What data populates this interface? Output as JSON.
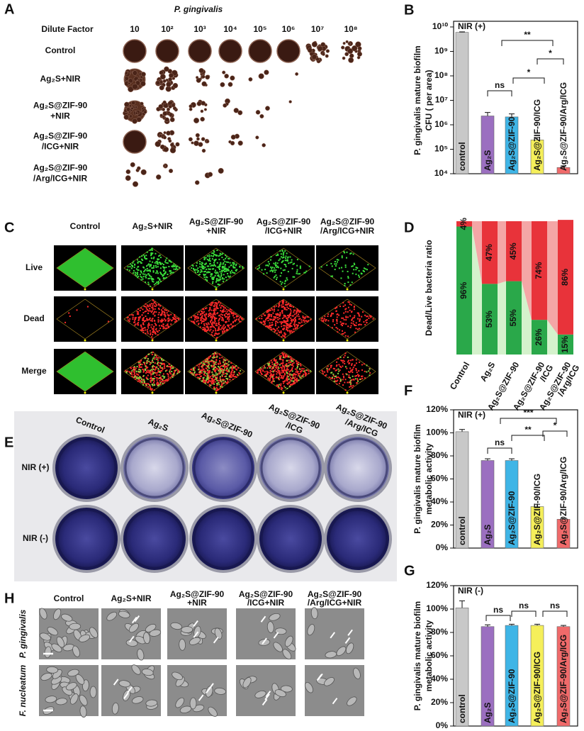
{
  "figure": {
    "panel_a": {
      "letter": "A",
      "title": "P. gingivalis",
      "dilute_label": "Dilute Factor",
      "dilutions": [
        "10",
        "10²",
        "10³",
        "10⁴",
        "10⁵",
        "10⁶",
        "10⁷",
        "10⁸"
      ],
      "rows": [
        [
          "Control"
        ],
        [
          "Ag₂S+NIR"
        ],
        [
          "Ag₂S@ZIF-90",
          "+NIR"
        ],
        [
          "Ag₂S@ZIF-90",
          "/ICG+NIR"
        ],
        [
          "Ag₂S@ZIF-90",
          "/Arg/ICG+NIR"
        ]
      ]
    },
    "panel_c": {
      "letter": "C",
      "columns": [
        [
          "Control"
        ],
        [
          "Ag₂S+NIR"
        ],
        [
          "Ag₂S@ZIF-90",
          "+NIR"
        ],
        [
          "Ag₂S@ZIF-90",
          "/ICG+NIR"
        ],
        [
          "Ag₂S@ZIF-90",
          "/Arg/ICG+NIR"
        ]
      ],
      "rows": [
        "Live",
        "Dead",
        "Merge"
      ]
    },
    "panel_e": {
      "letter": "E",
      "columns": [
        [
          "Control"
        ],
        [
          "Ag₂S"
        ],
        [
          "Ag₂S@ZIF-90"
        ],
        [
          "Ag₂S@ZIF-90",
          "/ICG"
        ],
        [
          "Ag₂S@ZIF-90",
          "/Arg/ICG"
        ]
      ],
      "rows": [
        "NIR (+)",
        "NIR (-)"
      ]
    },
    "panel_h": {
      "letter": "H",
      "columns": [
        [
          "Control"
        ],
        [
          "Ag₂S+NIR"
        ],
        [
          "Ag₂S@ZIF-90",
          "+NIR"
        ],
        [
          "Ag₂S@ZIF-90",
          "/ICG+NIR"
        ],
        [
          "Ag₂S@ZIF-90",
          "/Arg/ICG+NIR"
        ]
      ],
      "rows": [
        "P. gingivalis",
        "F. nucleatum"
      ]
    }
  },
  "chart_data": [
    {
      "type": "bar",
      "letter": "B",
      "annotation": "NIR (+)",
      "log_scale": true,
      "y_label": [
        "P. gingivalis mature biofilm",
        "CFU ( per area)"
      ],
      "categories": [
        "control",
        "Ag₂S",
        "Ag₂S@ZIF-90",
        "Ag₂S@ZIF-90/ICG",
        "Ag₂S@ZIF-90/Arg/ICG"
      ],
      "values": [
        6000000000,
        2300000,
        2100000,
        240000,
        18000
      ],
      "errors": [
        300000000,
        900000,
        700000,
        60000,
        3000
      ],
      "colors": [
        "#c8c8c8",
        "#9b6fc0",
        "#3fb5e6",
        "#f5ef5a",
        "#f06a6a"
      ],
      "significance": [
        "ns",
        "*",
        "*",
        "**"
      ],
      "ylim": [
        10000,
        10000000000
      ],
      "yticks": [
        {
          "value": 10000,
          "label": "10⁴"
        },
        {
          "value": 100000,
          "label": "10⁵"
        },
        {
          "value": 1000000,
          "label": "10⁶"
        },
        {
          "value": 10000000,
          "label": "10⁷"
        },
        {
          "value": 100000000,
          "label": "10⁸"
        },
        {
          "value": 1000000000,
          "label": "10⁹"
        },
        {
          "value": 10000000000,
          "label": "10¹⁰"
        }
      ]
    },
    {
      "type": "stacked_bar",
      "letter": "D",
      "y_label": [
        "Dead/Live bacteria ratio"
      ],
      "categories": [
        [
          "Control"
        ],
        [
          "Ag₂S"
        ],
        [
          "Ag₂S@ZIF-90"
        ],
        [
          "Ag₂S@ZIF-90",
          "/ICG"
        ],
        [
          "Ag₂S@ZIF-90",
          "/Arg/ICG"
        ]
      ],
      "series": [
        {
          "color": "#2aa84a",
          "values": [
            96,
            53,
            55,
            26,
            15
          ],
          "value_labels": [
            "96%",
            "53%",
            "55%",
            "26%",
            "15%"
          ]
        },
        {
          "color": "#e8333a",
          "values": [
            4,
            47,
            45,
            74,
            86
          ],
          "value_labels": [
            "4%",
            "47%",
            "45%",
            "74%",
            "86%"
          ]
        }
      ],
      "ylim": [
        0,
        100
      ]
    },
    {
      "type": "bar",
      "letter": "F",
      "annotation": "NIR (+)",
      "y_label": [
        "P. gingivalis mature biofilm",
        "metabolic activity"
      ],
      "categories": [
        "control",
        "Ag₂S",
        "Ag₂S@ZIF-90",
        "Ag₂S@ZIF-90/ICG",
        "Ag₂S@ZIF-90/Arg/ICG"
      ],
      "values": [
        101,
        76,
        76,
        36,
        25
      ],
      "errors": [
        2,
        1.5,
        1.5,
        2,
        1
      ],
      "colors": [
        "#c8c8c8",
        "#9b6fc0",
        "#3fb5e6",
        "#f5ef5a",
        "#f06a6a"
      ],
      "significance": [
        "ns",
        "**",
        "*",
        "***"
      ],
      "ylim": [
        0,
        120
      ],
      "yticks": [
        {
          "value": 0,
          "label": "0%"
        },
        {
          "value": 20,
          "label": "20%"
        },
        {
          "value": 40,
          "label": "40%"
        },
        {
          "value": 60,
          "label": "60%"
        },
        {
          "value": 80,
          "label": "80%"
        },
        {
          "value": 100,
          "label": "100%"
        },
        {
          "value": 120,
          "label": "120%"
        }
      ]
    },
    {
      "type": "bar",
      "letter": "G",
      "annotation": "NIR (-)",
      "y_label": [
        "P. gingivalis mature biofilm",
        "metabolic activity"
      ],
      "categories": [
        "control",
        "Ag₂S",
        "Ag₂S@ZIF-90",
        "Ag₂S@ZIF-90/ICG",
        "Ag₂S@ZIF-90/Arg/ICG"
      ],
      "values": [
        101,
        85,
        86,
        86,
        85
      ],
      "errors": [
        6,
        1.5,
        1,
        1,
        1
      ],
      "colors": [
        "#c8c8c8",
        "#9b6fc0",
        "#3fb5e6",
        "#f5ef5a",
        "#f06a6a"
      ],
      "significance": [
        "ns",
        "ns",
        "ns"
      ],
      "ylim": [
        0,
        120
      ],
      "yticks": [
        {
          "value": 0,
          "label": "0%"
        },
        {
          "value": 20,
          "label": "20%"
        },
        {
          "value": 40,
          "label": "40%"
        },
        {
          "value": 60,
          "label": "60%"
        },
        {
          "value": 80,
          "label": "80%"
        },
        {
          "value": 100,
          "label": "100%"
        },
        {
          "value": 120,
          "label": "120%"
        }
      ]
    }
  ]
}
